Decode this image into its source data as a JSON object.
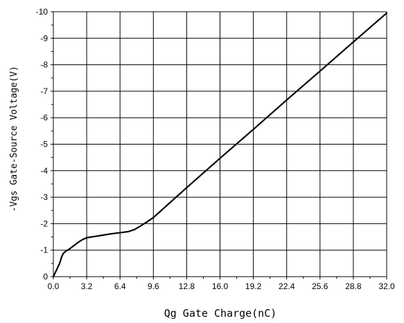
{
  "chart_data": {
    "type": "line",
    "xlabel": "Qg Gate Charge(nC)",
    "ylabel": "-Vgs Gate-Source Voltage(V)",
    "xlim": [
      0,
      32
    ],
    "ylim": [
      0,
      10
    ],
    "grid": true,
    "x_ticks": [
      0.0,
      3.2,
      6.4,
      9.6,
      12.8,
      16.0,
      19.2,
      22.4,
      25.6,
      28.8,
      32.0
    ],
    "x_tick_labels": [
      "0.0",
      "3.2",
      "6.4",
      "9.6",
      "12.8",
      "16.0",
      "19.2",
      "22.4",
      "25.6",
      "28.8",
      "32.0"
    ],
    "y_ticks": [
      0,
      1,
      2,
      3,
      4,
      5,
      6,
      7,
      8,
      9,
      10
    ],
    "y_tick_labels": [
      "0",
      "-1",
      "-2",
      "-3",
      "-4",
      "-5",
      "-6",
      "-7",
      "-8",
      "-9",
      "-10"
    ],
    "series": [
      {
        "color": "#000000",
        "x": [
          0.0,
          0.3,
          0.6,
          0.8,
          0.95,
          1.2,
          1.6,
          2.0,
          2.4,
          2.8,
          3.2,
          4.0,
          4.8,
          5.6,
          6.4,
          7.2,
          7.8,
          8.4,
          9.0,
          9.6,
          12.8,
          16.0,
          19.2,
          22.4,
          25.6,
          28.8,
          32.0
        ],
        "y": [
          0.0,
          0.25,
          0.5,
          0.75,
          0.88,
          0.96,
          1.06,
          1.18,
          1.3,
          1.4,
          1.47,
          1.52,
          1.57,
          1.62,
          1.66,
          1.7,
          1.78,
          1.92,
          2.07,
          2.23,
          3.36,
          4.47,
          5.56,
          6.67,
          7.76,
          8.86,
          9.95
        ]
      }
    ]
  }
}
